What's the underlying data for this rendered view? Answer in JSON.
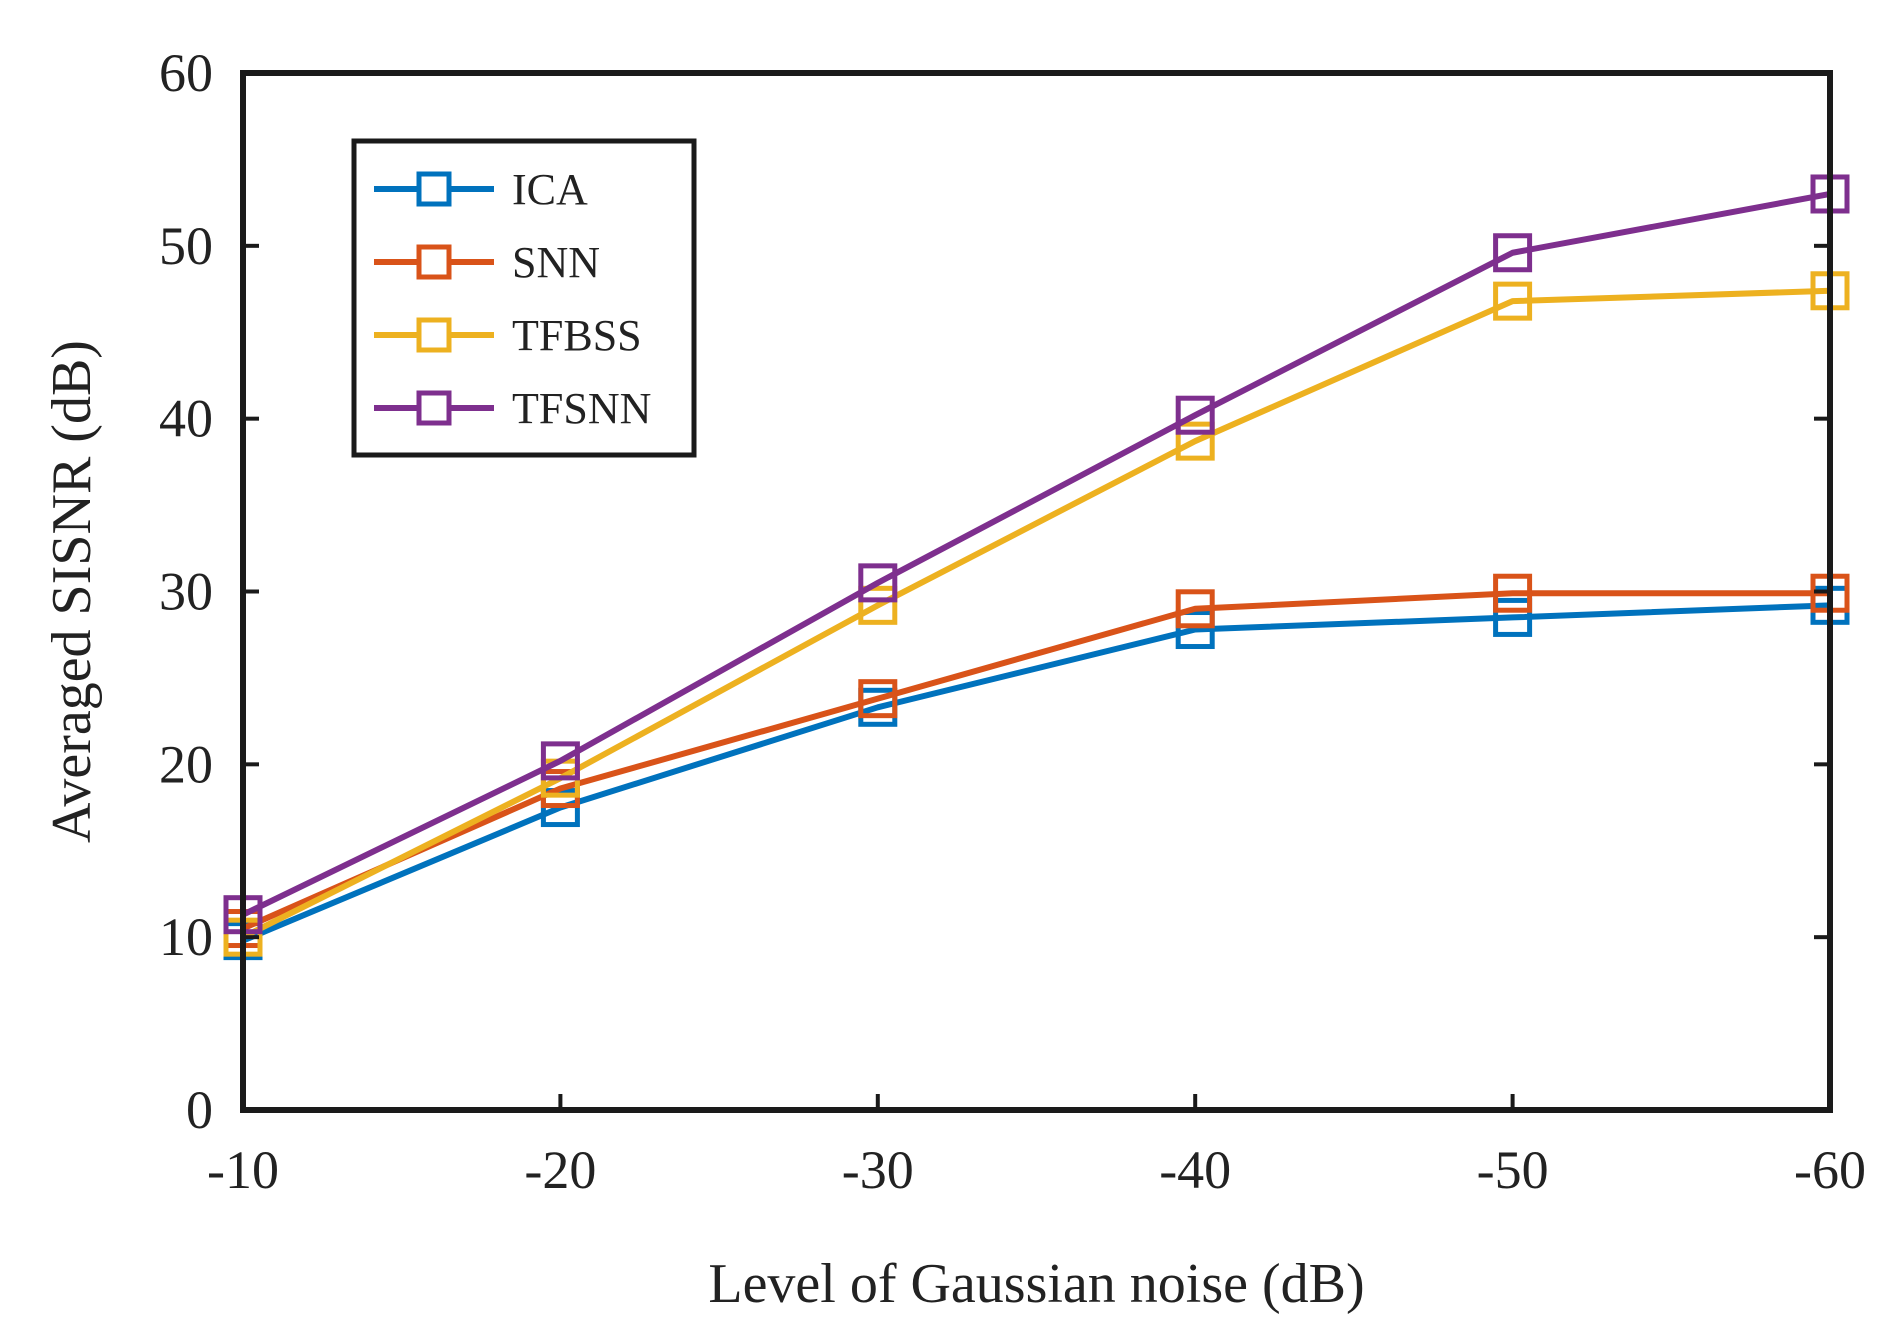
{
  "chart_data": {
    "type": "line",
    "title": "",
    "xlabel": "Level of Gaussian noise (dB)",
    "ylabel": "Averaged SISNR (dB)",
    "categories": [
      "-10",
      "-20",
      "-30",
      "-40",
      "-50",
      "-60"
    ],
    "ylim": [
      0,
      60
    ],
    "yticks": [
      "0",
      "10",
      "20",
      "30",
      "40",
      "50",
      "60"
    ],
    "grid": false,
    "legend_position": "top-left",
    "series": [
      {
        "name": "ICA",
        "color": "#0072BD",
        "marker": "square",
        "values": [
          9.8,
          17.5,
          23.3,
          27.8,
          28.5,
          29.2
        ]
      },
      {
        "name": "SNN",
        "color": "#D95319",
        "marker": "square",
        "values": [
          10.5,
          18.6,
          23.8,
          29.0,
          29.9,
          29.9
        ]
      },
      {
        "name": "TFBSS",
        "color": "#EDB120",
        "marker": "square",
        "values": [
          10.0,
          19.2,
          29.2,
          38.7,
          46.8,
          47.4
        ]
      },
      {
        "name": "TFSNN",
        "color": "#7E2F8E",
        "marker": "square",
        "values": [
          11.3,
          20.2,
          30.5,
          40.2,
          49.6,
          53.0
        ]
      }
    ]
  }
}
